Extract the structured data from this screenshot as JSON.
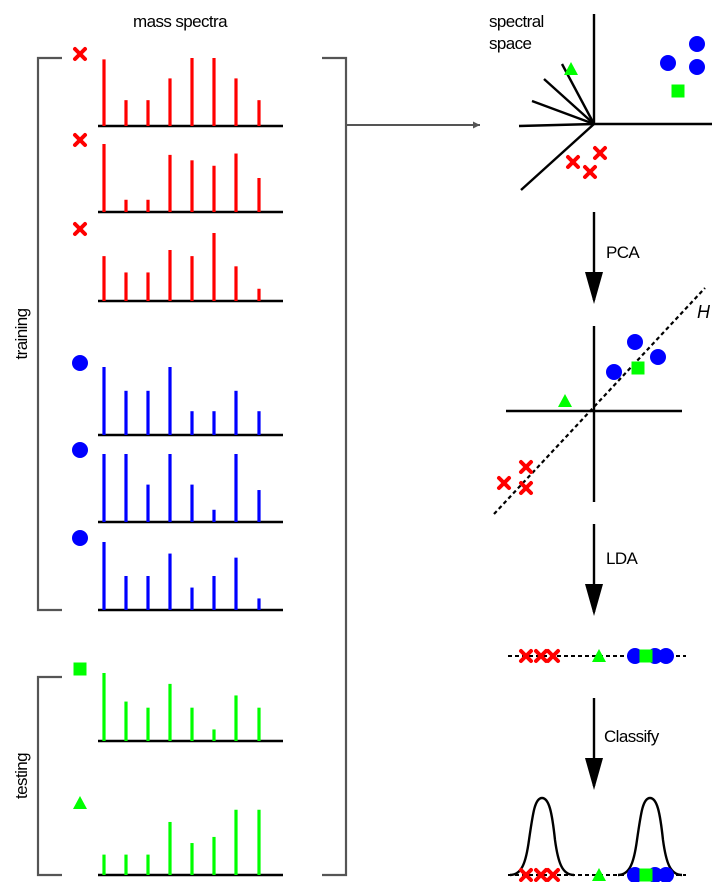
{
  "labels": {
    "mass_spectra": "mass spectra",
    "spectral_space_line1": "spectral",
    "spectral_space_line2": "space",
    "training": "training",
    "testing": "testing",
    "pca": "PCA",
    "lda": "LDA",
    "classify": "Classify",
    "hyperplane": "H"
  },
  "colors": {
    "red": "#ff0000",
    "blue": "#0000ff",
    "green": "#00ff00",
    "axis": "#000000",
    "bracket": "#555555"
  },
  "spectra": [
    {
      "marker": "cross",
      "color": "red",
      "group": "training",
      "values": [
        0.98,
        0.38,
        0.38,
        0.7,
        1.0,
        1.0,
        0.7,
        0.38
      ]
    },
    {
      "marker": "cross",
      "color": "red",
      "group": "training",
      "values": [
        1.0,
        0.18,
        0.18,
        0.84,
        0.76,
        0.68,
        0.86,
        0.5
      ]
    },
    {
      "marker": "cross",
      "color": "red",
      "group": "training",
      "values": [
        0.66,
        0.42,
        0.42,
        0.75,
        0.66,
        1.0,
        0.51,
        0.18
      ]
    },
    {
      "marker": "circle",
      "color": "blue",
      "group": "training",
      "values": [
        1.0,
        0.65,
        0.65,
        1.0,
        0.35,
        0.35,
        0.65,
        0.35
      ]
    },
    {
      "marker": "circle",
      "color": "blue",
      "group": "training",
      "values": [
        1.0,
        1.0,
        0.55,
        1.0,
        0.55,
        0.18,
        1.0,
        0.47
      ]
    },
    {
      "marker": "circle",
      "color": "blue",
      "group": "training",
      "values": [
        1.0,
        0.5,
        0.5,
        0.83,
        0.33,
        0.5,
        0.77,
        0.17
      ]
    },
    {
      "marker": "square",
      "color": "green",
      "group": "testing",
      "values": [
        1.0,
        0.58,
        0.49,
        0.84,
        0.49,
        0.17,
        0.67,
        0.49
      ]
    },
    {
      "marker": "triangle",
      "color": "green",
      "group": "testing",
      "values": [
        0.3,
        0.3,
        0.3,
        0.78,
        0.47,
        0.56,
        0.96,
        0.96
      ]
    }
  ],
  "panels": {
    "spectral_space": [
      {
        "marker": "triangle",
        "color": "green"
      },
      {
        "marker": "circle",
        "color": "blue"
      },
      {
        "marker": "circle",
        "color": "blue"
      },
      {
        "marker": "circle",
        "color": "blue"
      },
      {
        "marker": "square",
        "color": "green"
      },
      {
        "marker": "cross",
        "color": "red"
      },
      {
        "marker": "cross",
        "color": "red"
      },
      {
        "marker": "cross",
        "color": "red"
      }
    ],
    "pca": [
      {
        "marker": "circle",
        "color": "blue"
      },
      {
        "marker": "circle",
        "color": "blue"
      },
      {
        "marker": "circle",
        "color": "blue"
      },
      {
        "marker": "square",
        "color": "green"
      },
      {
        "marker": "triangle",
        "color": "green"
      },
      {
        "marker": "cross",
        "color": "red"
      },
      {
        "marker": "cross",
        "color": "red"
      },
      {
        "marker": "cross",
        "color": "red"
      }
    ],
    "lda": [
      {
        "marker": "cross",
        "color": "red"
      },
      {
        "marker": "cross",
        "color": "red"
      },
      {
        "marker": "cross",
        "color": "red"
      },
      {
        "marker": "triangle",
        "color": "green"
      },
      {
        "marker": "circle",
        "color": "blue"
      },
      {
        "marker": "circle",
        "color": "blue"
      },
      {
        "marker": "circle",
        "color": "blue"
      },
      {
        "marker": "square",
        "color": "green"
      }
    ],
    "classify": [
      {
        "marker": "cross",
        "color": "red"
      },
      {
        "marker": "cross",
        "color": "red"
      },
      {
        "marker": "cross",
        "color": "red"
      },
      {
        "marker": "triangle",
        "color": "green"
      },
      {
        "marker": "circle",
        "color": "blue"
      },
      {
        "marker": "circle",
        "color": "blue"
      },
      {
        "marker": "circle",
        "color": "blue"
      },
      {
        "marker": "square",
        "color": "green"
      }
    ]
  }
}
